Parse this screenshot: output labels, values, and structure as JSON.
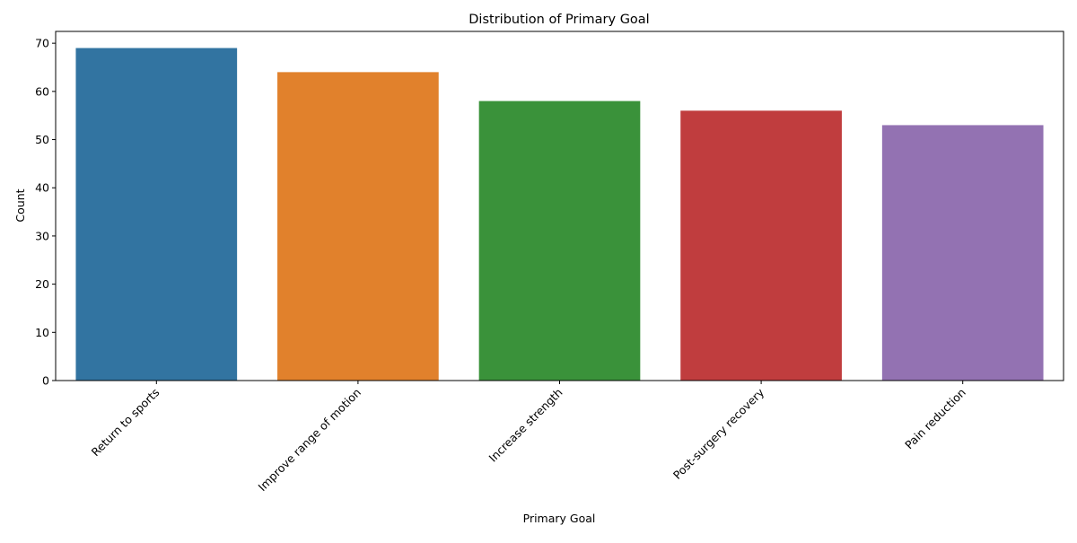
{
  "chart_data": {
    "type": "bar",
    "title": "Distribution of Primary Goal",
    "xlabel": "Primary Goal",
    "ylabel": "Count",
    "categories": [
      "Return to sports",
      "Improve range of motion",
      "Increase strength",
      "Post-surgery recovery",
      "Pain reduction"
    ],
    "values": [
      69,
      64,
      58,
      56,
      53
    ],
    "colors": [
      "#3274a1",
      "#e1812c",
      "#3a923a",
      "#c03d3e",
      "#9372b2"
    ],
    "ylim": [
      0,
      72.45
    ],
    "yticks": [
      0,
      10,
      20,
      30,
      40,
      50,
      60,
      70
    ],
    "grid": false,
    "legend": "none"
  }
}
